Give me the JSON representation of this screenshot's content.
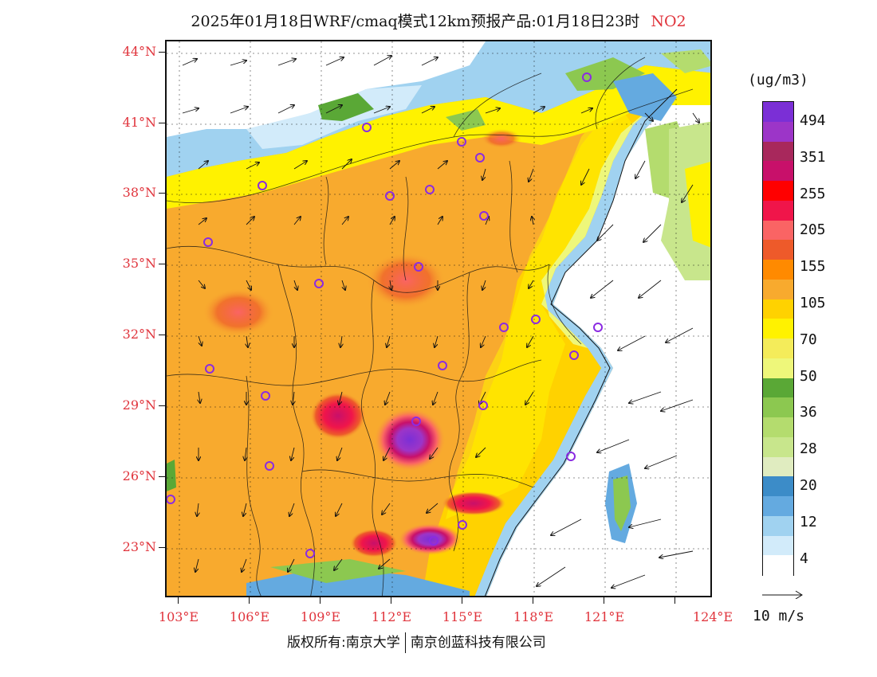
{
  "title": {
    "main": "2025年01月18日WRF/cmaq模式12km预报产品:01月18日23时",
    "pollutant": "NO2"
  },
  "map": {
    "lat_labels": [
      "44°N",
      "41°N",
      "38°N",
      "35°N",
      "32°N",
      "29°N",
      "26°N",
      "23°N"
    ],
    "lon_labels": [
      "103°E",
      "106°E",
      "109°E",
      "112°E",
      "115°E",
      "118°E",
      "121°E",
      "124°E"
    ],
    "lat_range": [
      21,
      44.5
    ],
    "lon_range": [
      103,
      124
    ]
  },
  "legend": {
    "unit": "(ug/m3)",
    "colors": [
      "#7b2fd6",
      "#9c35c8",
      "#a8285c",
      "#c8106a",
      "#ff0000",
      "#f0154a",
      "#fa6464",
      "#ee5a2a",
      "#ff8a00",
      "#f8aa2e",
      "#ffd200",
      "#fff200",
      "#f4ec5a",
      "#eef77a",
      "#5aa836",
      "#8cc850",
      "#b4dc6e",
      "#c8e68c",
      "#e0ecc0",
      "#3c8cc8",
      "#64aae0",
      "#a0d2f0",
      "#d2ebfa",
      "#ffffff"
    ],
    "labels": [
      "494",
      "351",
      "255",
      "205",
      "155",
      "105",
      "70",
      "50",
      "36",
      "28",
      "20",
      "12",
      "4"
    ]
  },
  "wind_reference": {
    "label": "10 m/s"
  },
  "footer": {
    "copyright": "版权所有:南京大学",
    "company": "南京创蓝科技有限公司"
  }
}
